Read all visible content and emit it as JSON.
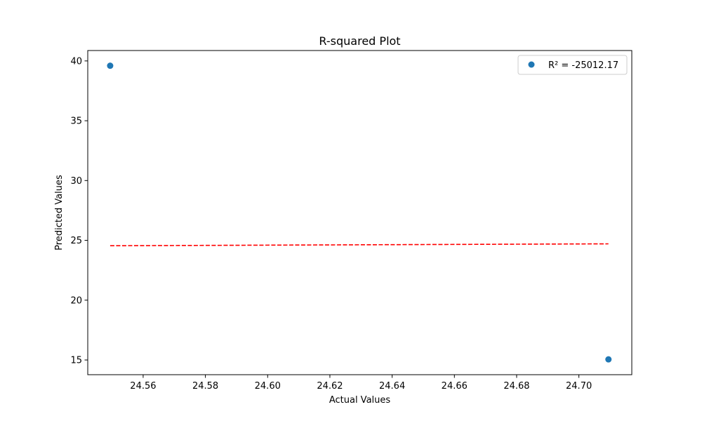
{
  "chart_data": {
    "type": "scatter",
    "title": "R-squared Plot",
    "xlabel": "Actual Values",
    "ylabel": "Predicted Values",
    "xlim": [
      24.5422,
      24.717
    ],
    "ylim": [
      13.77,
      40.87
    ],
    "x_ticks": [
      24.56,
      24.58,
      24.6,
      24.62,
      24.64,
      24.66,
      24.68,
      24.7
    ],
    "x_tick_labels": [
      "24.56",
      "24.58",
      "24.60",
      "24.62",
      "24.64",
      "24.66",
      "24.68",
      "24.70"
    ],
    "y_ticks": [
      15,
      20,
      25,
      30,
      35,
      40
    ],
    "y_tick_labels": [
      "15",
      "20",
      "25",
      "30",
      "35",
      "40"
    ],
    "grid": false,
    "legend_position": "top-right",
    "series": [
      {
        "name": "R² = -25012.17",
        "type": "scatter",
        "color": "#1f77b4",
        "points": [
          {
            "x": 24.5494,
            "y": 39.6
          },
          {
            "x": 24.7095,
            "y": 15.05
          }
        ]
      }
    ],
    "reference_line": {
      "style": "dashed",
      "color": "#ff0000",
      "points": [
        {
          "x": 24.5494,
          "y": 24.5494
        },
        {
          "x": 24.7095,
          "y": 24.7095
        }
      ]
    }
  }
}
